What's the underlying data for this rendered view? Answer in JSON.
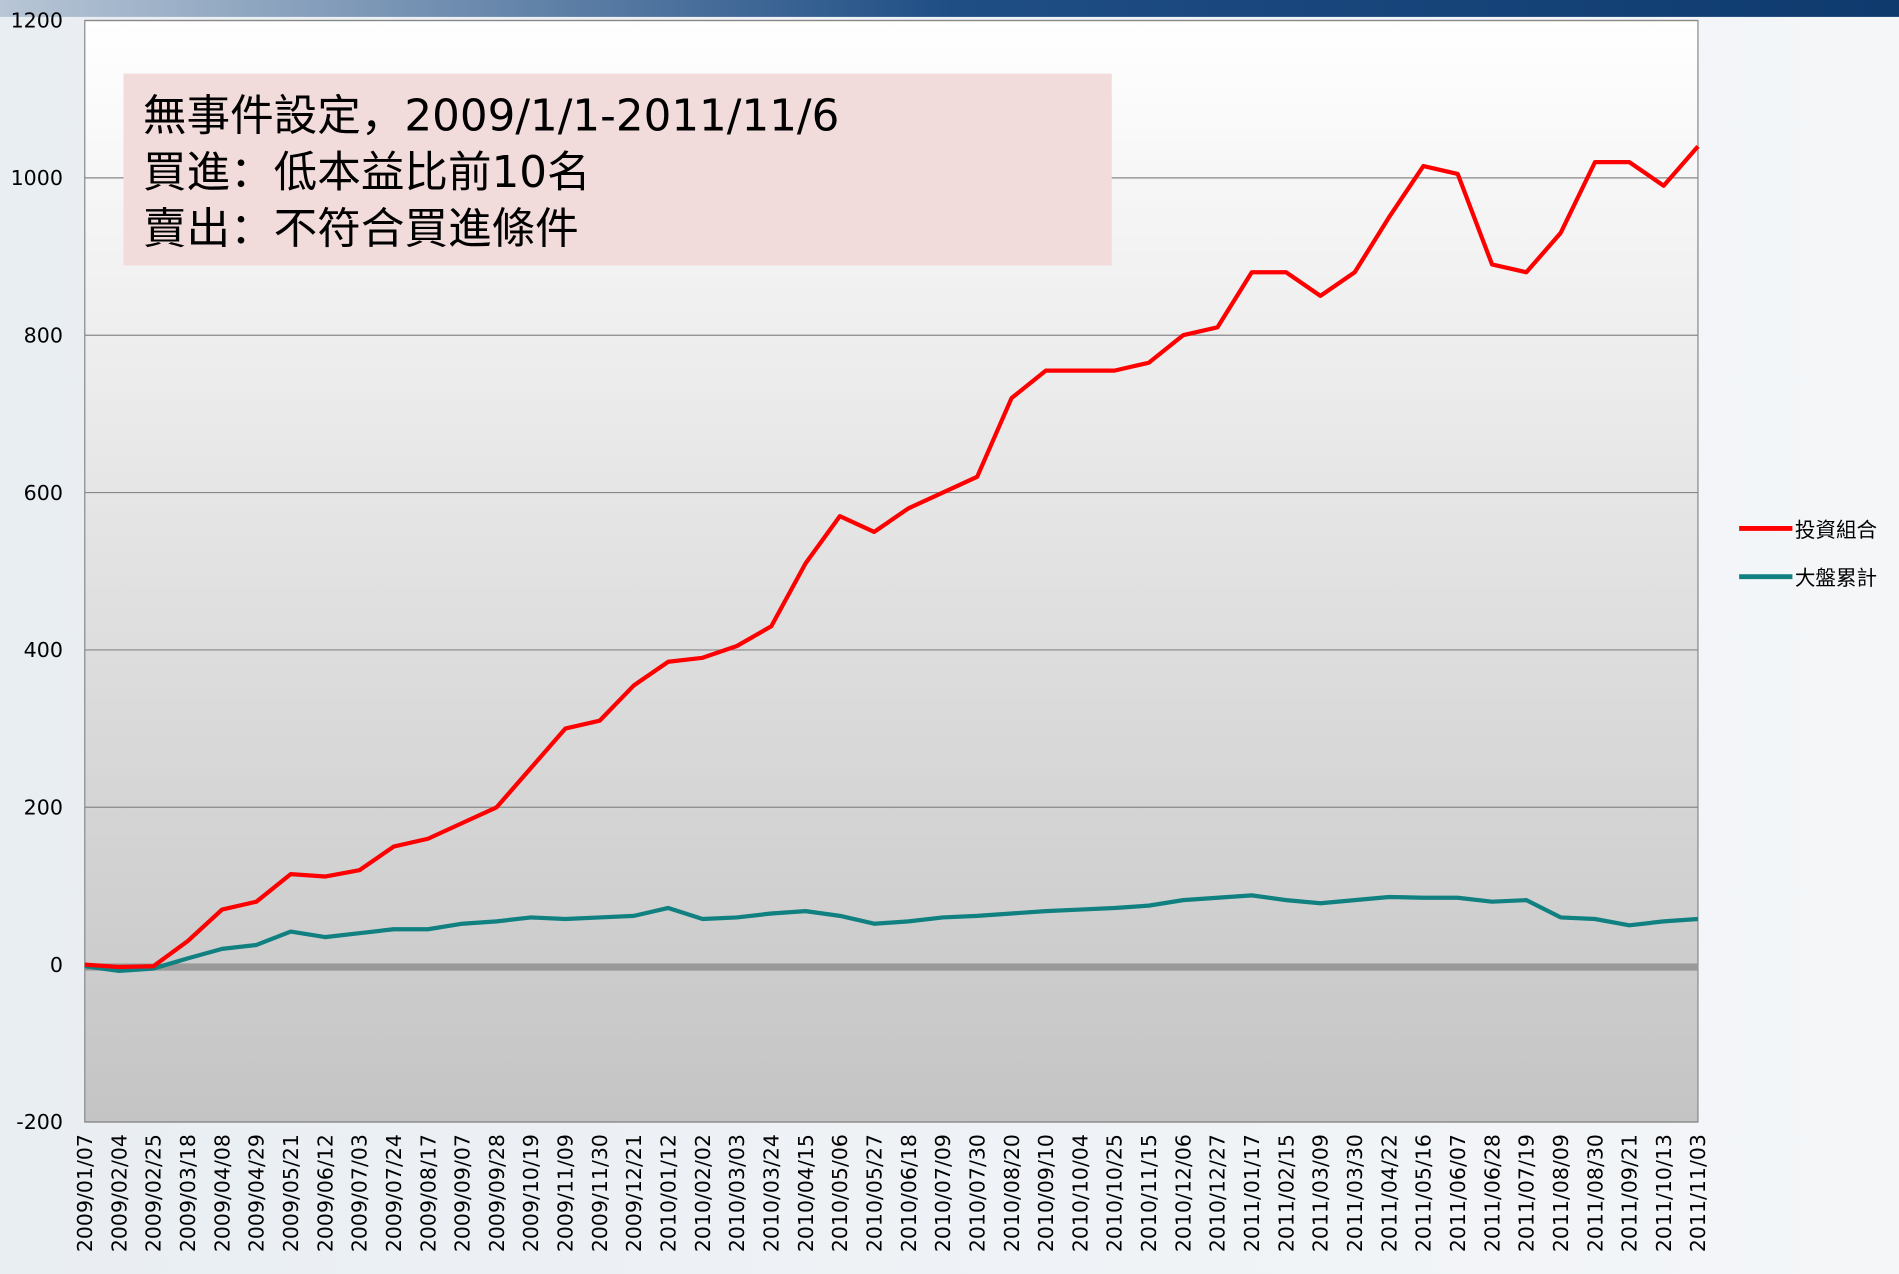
{
  "chart_data": {
    "type": "line",
    "annotation": [
      "無事件設定，2009/1/1-2011/11/6",
      "買進：低本益比前10名",
      "賣出：不符合買進條件"
    ],
    "categories": [
      "2009/01/07",
      "2009/02/04",
      "2009/02/25",
      "2009/03/18",
      "2009/04/08",
      "2009/04/29",
      "2009/05/21",
      "2009/06/12",
      "2009/07/03",
      "2009/07/24",
      "2009/08/17",
      "2009/09/07",
      "2009/09/28",
      "2009/10/19",
      "2009/11/09",
      "2009/11/30",
      "2009/12/21",
      "2010/01/12",
      "2010/02/02",
      "2010/03/03",
      "2010/03/24",
      "2010/04/15",
      "2010/05/06",
      "2010/05/27",
      "2010/06/18",
      "2010/07/09",
      "2010/07/30",
      "2010/08/20",
      "2010/09/10",
      "2010/10/04",
      "2010/10/25",
      "2010/11/15",
      "2010/12/06",
      "2010/12/27",
      "2011/01/17",
      "2011/02/15",
      "2011/03/09",
      "2011/03/30",
      "2011/04/22",
      "2011/05/16",
      "2011/06/07",
      "2011/06/28",
      "2011/07/19",
      "2011/08/09",
      "2011/08/30",
      "2011/09/21",
      "2011/10/13",
      "2011/11/03"
    ],
    "series": [
      {
        "name": "投資組合",
        "color": "#ff0000",
        "values": [
          0,
          -3,
          -2,
          30,
          70,
          80,
          115,
          112,
          120,
          150,
          160,
          180,
          200,
          250,
          300,
          310,
          355,
          385,
          390,
          405,
          430,
          510,
          570,
          550,
          580,
          600,
          620,
          720,
          755,
          755,
          755,
          765,
          800,
          810,
          880,
          880,
          850,
          880,
          950,
          1015,
          1005,
          890,
          880,
          930,
          1020,
          1020,
          990,
          1040
        ]
      },
      {
        "name": "大盤累計",
        "color": "#108080",
        "values": [
          -2,
          -8,
          -5,
          8,
          20,
          25,
          42,
          35,
          40,
          45,
          45,
          52,
          55,
          60,
          58,
          60,
          62,
          72,
          58,
          60,
          65,
          68,
          62,
          52,
          55,
          60,
          62,
          65,
          68,
          70,
          72,
          75,
          82,
          85,
          88,
          82,
          78,
          82,
          86,
          85,
          85,
          80,
          82,
          60,
          58,
          50,
          55,
          58
        ]
      }
    ],
    "ylim": [
      -200,
      1200
    ],
    "yticks": [
      -200,
      0,
      200,
      400,
      600,
      800,
      1000,
      1200
    ],
    "grid": true
  }
}
